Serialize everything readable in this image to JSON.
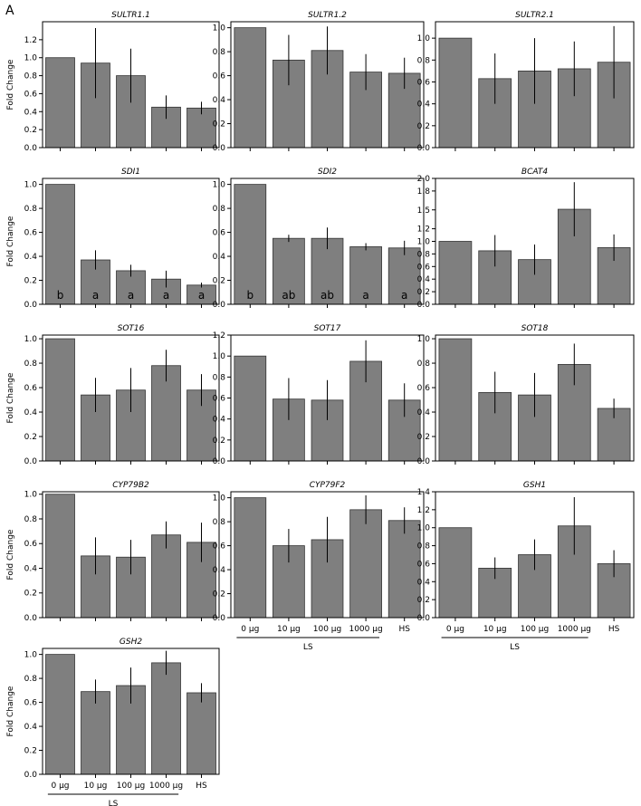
{
  "panel_letter": "A",
  "y_axis_label": "Fold Change",
  "chart_data": [
    {
      "type": "bar",
      "title": "SULTR1.1",
      "categories": [
        "0 µg",
        "10 µg",
        "100 µg",
        "1000 µg",
        "HS"
      ],
      "values": [
        1.0,
        0.94,
        0.8,
        0.45,
        0.44
      ],
      "errors": [
        0.0,
        0.39,
        0.3,
        0.13,
        0.07
      ],
      "ylim": [
        0,
        1.4
      ],
      "yticks": [
        0.0,
        0.2,
        0.4,
        0.6,
        0.8,
        1.0,
        1.2
      ]
    },
    {
      "type": "bar",
      "title": "SULTR1.2",
      "categories": [
        "0 µg",
        "10 µg",
        "100 µg",
        "1000 µg",
        "HS"
      ],
      "values": [
        1.0,
        0.73,
        0.81,
        0.63,
        0.62
      ],
      "errors": [
        0.0,
        0.21,
        0.2,
        0.15,
        0.13
      ],
      "ylim": [
        0,
        1.05
      ],
      "yticks": [
        0.0,
        0.2,
        0.4,
        0.6,
        0.8,
        1.0
      ]
    },
    {
      "type": "bar",
      "title": "SULTR2.1",
      "categories": [
        "0 µg",
        "10 µg",
        "100 µg",
        "1000 µg",
        "HS"
      ],
      "values": [
        1.0,
        0.63,
        0.7,
        0.72,
        0.78
      ],
      "errors": [
        0.0,
        0.23,
        0.3,
        0.25,
        0.33
      ],
      "ylim": [
        0,
        1.15
      ],
      "yticks": [
        0.0,
        0.2,
        0.4,
        0.6,
        0.8,
        1.0
      ]
    },
    {
      "type": "bar",
      "title": "SDI1",
      "categories": [
        "0 µg",
        "10 µg",
        "100 µg",
        "1000 µg",
        "HS"
      ],
      "values": [
        1.0,
        0.37,
        0.28,
        0.21,
        0.16
      ],
      "errors": [
        0.0,
        0.08,
        0.05,
        0.07,
        0.02
      ],
      "ylim": [
        0,
        1.05
      ],
      "yticks": [
        0.0,
        0.2,
        0.4,
        0.6,
        0.8,
        1.0
      ],
      "annotations": [
        "b",
        "a",
        "a",
        "a",
        "a"
      ]
    },
    {
      "type": "bar",
      "title": "SDI2",
      "categories": [
        "0 µg",
        "10 µg",
        "100 µg",
        "1000 µg",
        "HS"
      ],
      "values": [
        1.0,
        0.55,
        0.55,
        0.48,
        0.47
      ],
      "errors": [
        0.0,
        0.03,
        0.09,
        0.03,
        0.06
      ],
      "ylim": [
        0,
        1.05
      ],
      "yticks": [
        0.0,
        0.2,
        0.4,
        0.6,
        0.8,
        1.0
      ],
      "annotations": [
        "b",
        "ab",
        "ab",
        "a",
        "a"
      ]
    },
    {
      "type": "bar",
      "title": "BCAT4",
      "categories": [
        "0 µg",
        "10 µg",
        "100 µg",
        "1000 µg",
        "HS"
      ],
      "values": [
        1.0,
        0.85,
        0.71,
        1.51,
        0.9
      ],
      "errors": [
        0.0,
        0.25,
        0.24,
        0.43,
        0.21
      ],
      "ylim": [
        0,
        2.0
      ],
      "yticks": [
        0.0,
        0.2,
        0.4,
        0.6,
        0.8,
        1.0,
        1.2,
        1.5,
        1.8,
        2.0
      ],
      "yticklabels": [
        "0.0",
        "0.2",
        "0.4",
        "0.6",
        "0.8",
        "1.0",
        "1.2",
        "1.5",
        "1.8",
        "2.0"
      ]
    },
    {
      "type": "bar",
      "title": "SOT16",
      "categories": [
        "0 µg",
        "10 µg",
        "100 µg",
        "1000 µg",
        "HS"
      ],
      "values": [
        1.0,
        0.54,
        0.58,
        0.78,
        0.58
      ],
      "errors": [
        0.0,
        0.14,
        0.18,
        0.13,
        0.13
      ],
      "ylim": [
        0,
        1.03
      ],
      "yticks": [
        0.0,
        0.2,
        0.4,
        0.6,
        0.8,
        1.0
      ]
    },
    {
      "type": "bar",
      "title": "SOT17",
      "categories": [
        "0 µg",
        "10 µg",
        "100 µg",
        "1000 µg",
        "HS"
      ],
      "values": [
        1.0,
        0.59,
        0.58,
        0.95,
        0.58
      ],
      "errors": [
        0.0,
        0.2,
        0.19,
        0.2,
        0.16
      ],
      "ylim": [
        0,
        1.2
      ],
      "yticks": [
        0.0,
        0.2,
        0.4,
        0.6,
        0.8,
        1.0,
        1.2
      ]
    },
    {
      "type": "bar",
      "title": "SOT18",
      "categories": [
        "0 µg",
        "10 µg",
        "100 µg",
        "1000 µg",
        "HS"
      ],
      "values": [
        1.0,
        0.56,
        0.54,
        0.79,
        0.43
      ],
      "errors": [
        0.0,
        0.17,
        0.18,
        0.17,
        0.08
      ],
      "ylim": [
        0,
        1.03
      ],
      "yticks": [
        0.0,
        0.2,
        0.4,
        0.6,
        0.8,
        1.0
      ]
    },
    {
      "type": "bar",
      "title": "CYP79B2",
      "categories": [
        "0 µg",
        "10 µg",
        "100 µg",
        "1000 µg",
        "HS"
      ],
      "values": [
        1.0,
        0.5,
        0.49,
        0.67,
        0.61
      ],
      "errors": [
        0.0,
        0.15,
        0.14,
        0.11,
        0.16
      ],
      "ylim": [
        0,
        1.02
      ],
      "yticks": [
        0.0,
        0.2,
        0.4,
        0.6,
        0.8,
        1.0
      ]
    },
    {
      "type": "bar",
      "title": "CYP79F2",
      "categories": [
        "0 µg",
        "10 µg",
        "100 µg",
        "1000 µg",
        "HS"
      ],
      "values": [
        1.0,
        0.6,
        0.65,
        0.9,
        0.81
      ],
      "errors": [
        0.0,
        0.14,
        0.19,
        0.12,
        0.11
      ],
      "ylim": [
        0,
        1.05
      ],
      "yticks": [
        0.0,
        0.2,
        0.4,
        0.6,
        0.8,
        1.0
      ],
      "show_xticklabels": true
    },
    {
      "type": "bar",
      "title": "GSH1",
      "categories": [
        "0 µg",
        "10 µg",
        "100 µg",
        "1000 µg",
        "HS"
      ],
      "values": [
        1.0,
        0.55,
        0.7,
        1.02,
        0.6
      ],
      "errors": [
        0.0,
        0.12,
        0.17,
        0.32,
        0.15
      ],
      "ylim": [
        0,
        1.4
      ],
      "yticks": [
        0.0,
        0.2,
        0.4,
        0.6,
        0.8,
        1.0,
        1.2,
        1.4
      ],
      "show_xticklabels": true
    },
    {
      "type": "bar",
      "title": "GSH2",
      "categories": [
        "0 µg",
        "10 µg",
        "100 µg",
        "1000 µg",
        "HS"
      ],
      "values": [
        1.0,
        0.69,
        0.74,
        0.93,
        0.68
      ],
      "errors": [
        0.0,
        0.1,
        0.15,
        0.1,
        0.08
      ],
      "ylim": [
        0,
        1.05
      ],
      "yticks": [
        0.0,
        0.2,
        0.4,
        0.6,
        0.8,
        1.0
      ],
      "show_xticklabels": true
    }
  ],
  "group_label": "LS",
  "bar_color": "#7f7f7f"
}
